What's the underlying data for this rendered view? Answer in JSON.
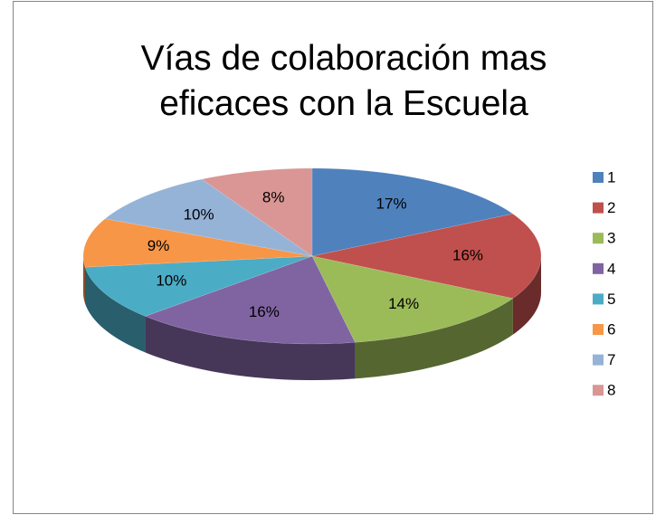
{
  "chart_data": {
    "type": "pie",
    "title": "Vías de colaboración mas eficaces con la Escuela",
    "categories": [
      "1",
      "2",
      "3",
      "4",
      "5",
      "6",
      "7",
      "8"
    ],
    "values": [
      17,
      16,
      14,
      16,
      10,
      9,
      10,
      8
    ],
    "value_labels": [
      "17%",
      "16%",
      "14%",
      "16%",
      "10%",
      "9%",
      "10%",
      "8%"
    ],
    "colors": [
      "#4f81bd",
      "#c0504d",
      "#9bbb59",
      "#8064a2",
      "#4bacc6",
      "#f79646",
      "#95b3d7",
      "#d99694"
    ],
    "legend": "right"
  }
}
